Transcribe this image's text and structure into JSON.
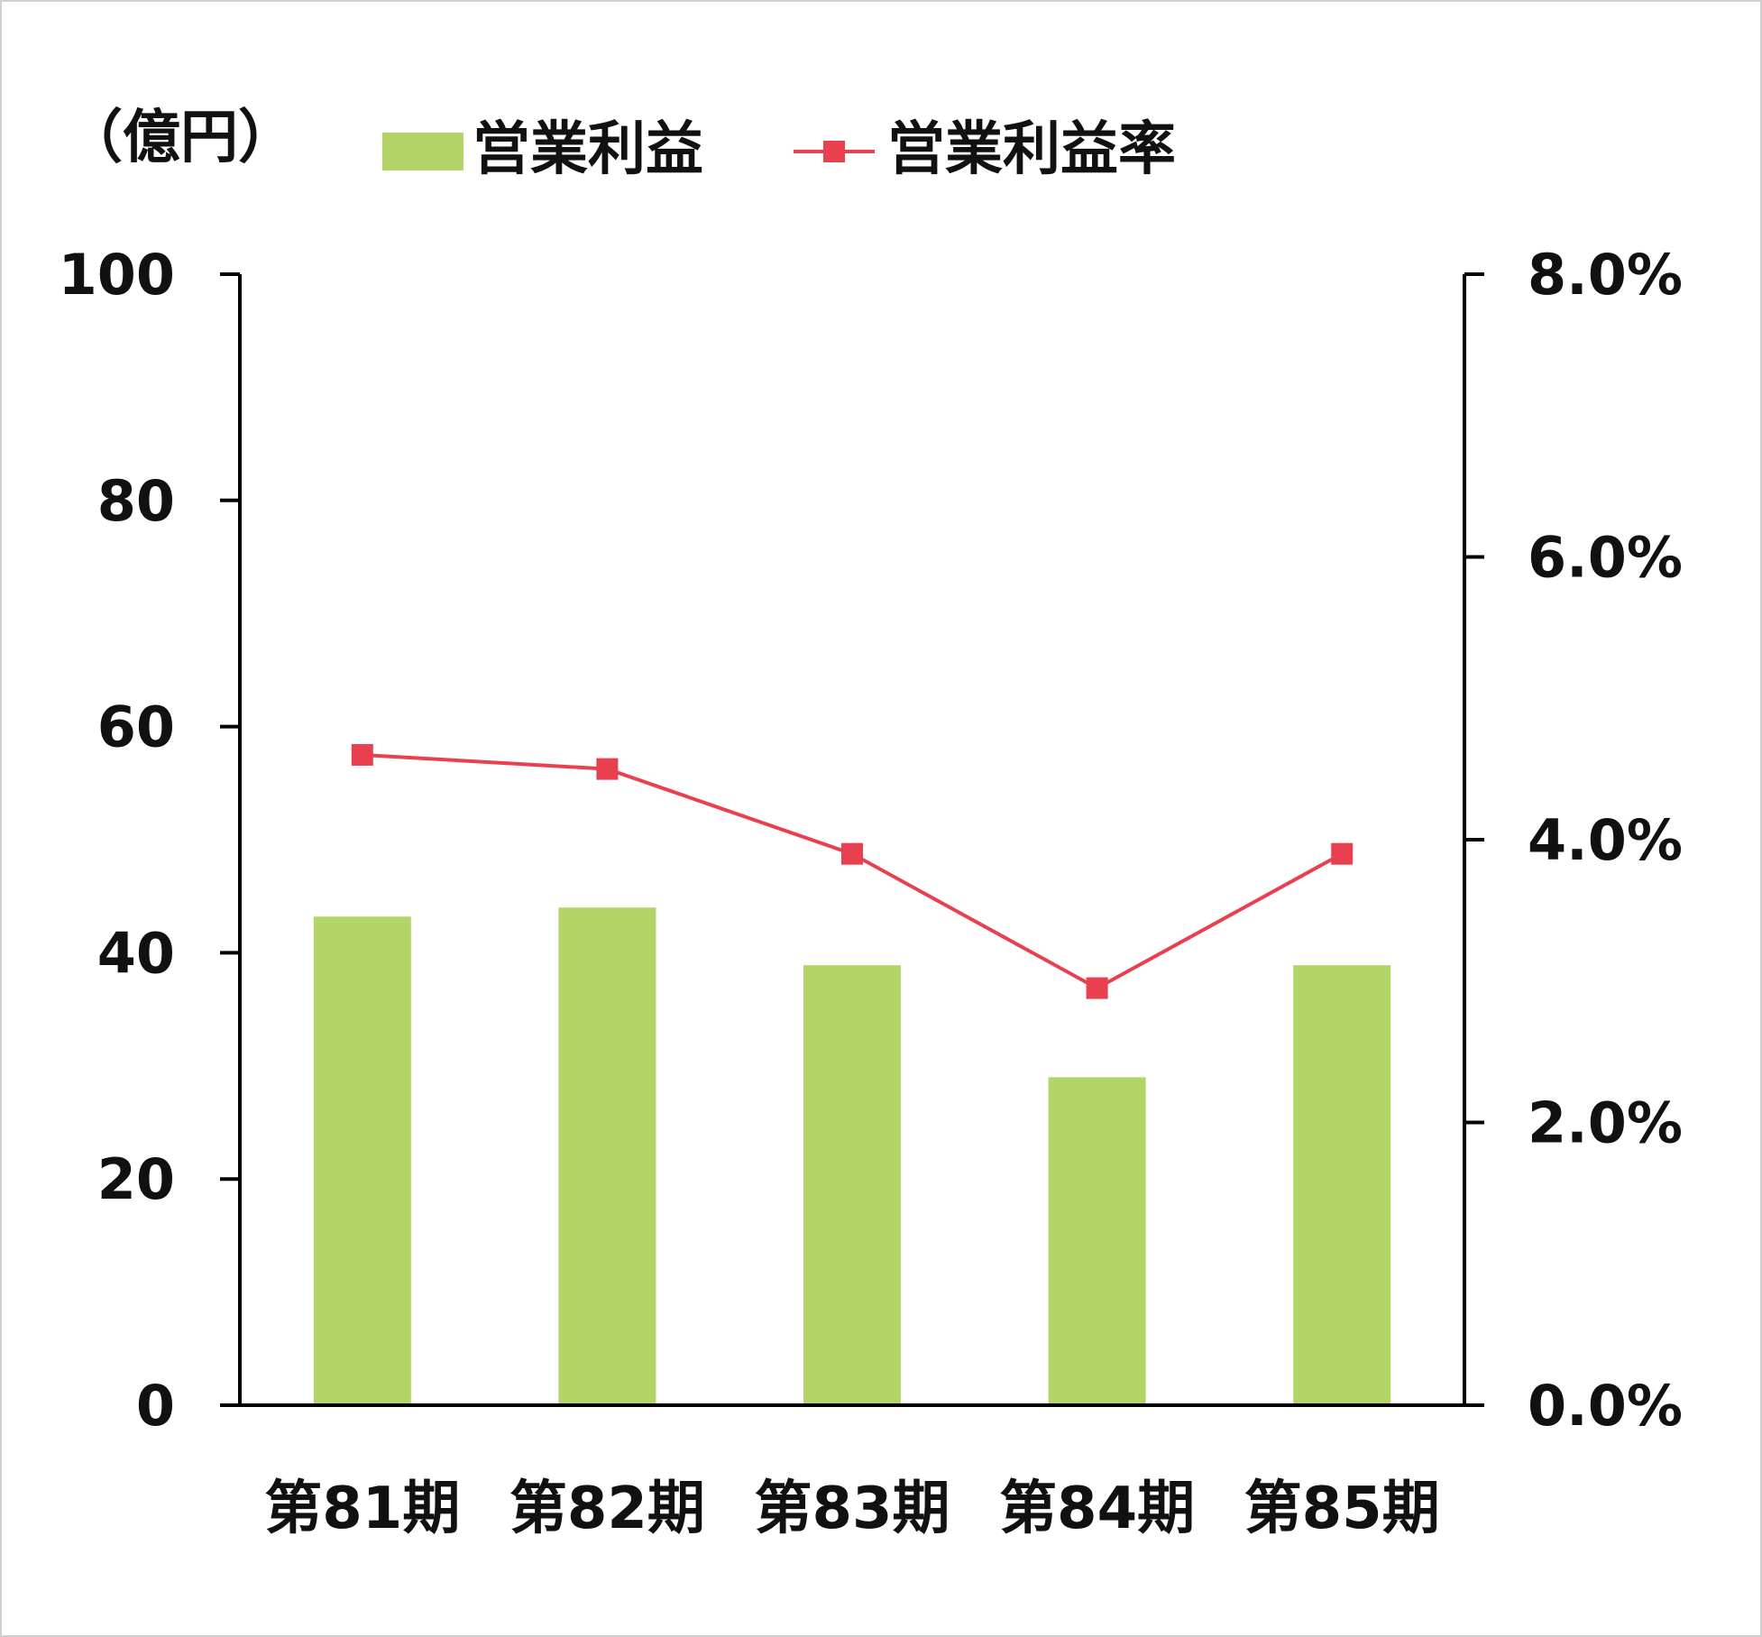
{
  "chart_data": {
    "type": "bar",
    "unit_label": "（億円）",
    "categories": [
      "第81期",
      "第82期",
      "第83期",
      "第84期",
      "第85期"
    ],
    "series": [
      {
        "name": "営業利益",
        "type": "bar",
        "axis": "left",
        "values": [
          43.2,
          44.0,
          38.9,
          29.0,
          38.9
        ],
        "color": "#b3d467"
      },
      {
        "name": "営業利益率",
        "type": "line",
        "axis": "right",
        "values": [
          4.6,
          4.5,
          3.9,
          2.95,
          3.9
        ],
        "color": "#e8404f"
      }
    ],
    "y_left": {
      "min": 0,
      "max": 100,
      "ticks": [
        "0",
        "20",
        "40",
        "60",
        "80",
        "100"
      ]
    },
    "y_right": {
      "min": 0,
      "max": 8,
      "ticks": [
        "0.0%",
        "2.0%",
        "4.0%",
        "6.0%",
        "8.0%"
      ]
    },
    "grid": false,
    "legend": "top"
  }
}
